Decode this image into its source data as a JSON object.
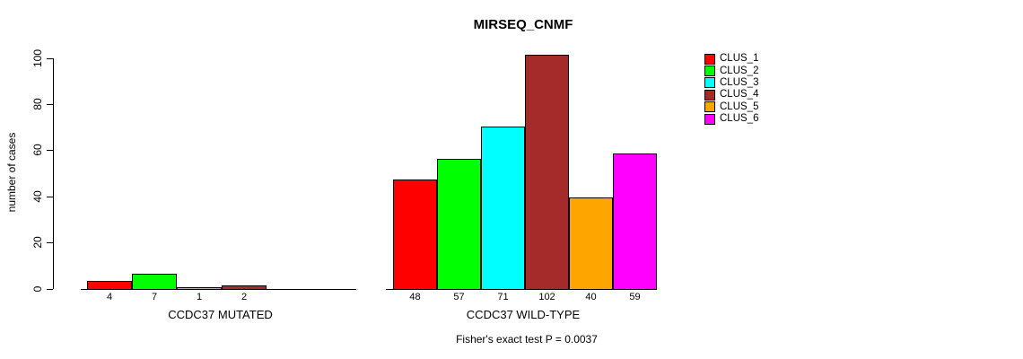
{
  "chart_data": {
    "type": "bar",
    "title": "MIRSEQ_CNMF",
    "xlabel": "",
    "ylabel": "number of cases",
    "ylim": [
      0,
      100
    ],
    "yticks": [
      0,
      20,
      40,
      60,
      80,
      100
    ],
    "grid": false,
    "legend_position": "right",
    "series": [
      {
        "name": "CLUS_1",
        "color": "#FF0000"
      },
      {
        "name": "CLUS_2",
        "color": "#00FF00"
      },
      {
        "name": "CLUS_3",
        "color": "#00FFFF"
      },
      {
        "name": "CLUS_4",
        "color": "#A52A2A"
      },
      {
        "name": "CLUS_5",
        "color": "#FFA500"
      },
      {
        "name": "CLUS_6",
        "color": "#FF00FF"
      }
    ],
    "groups": [
      {
        "label": "CCDC37 MUTATED",
        "values": [
          4,
          7,
          1,
          2,
          0,
          0
        ]
      },
      {
        "label": "CCDC37 WILD-TYPE",
        "values": [
          48,
          57,
          71,
          102,
          40,
          59
        ]
      }
    ],
    "annotation": "Fisher's exact test P = 0.0037"
  }
}
